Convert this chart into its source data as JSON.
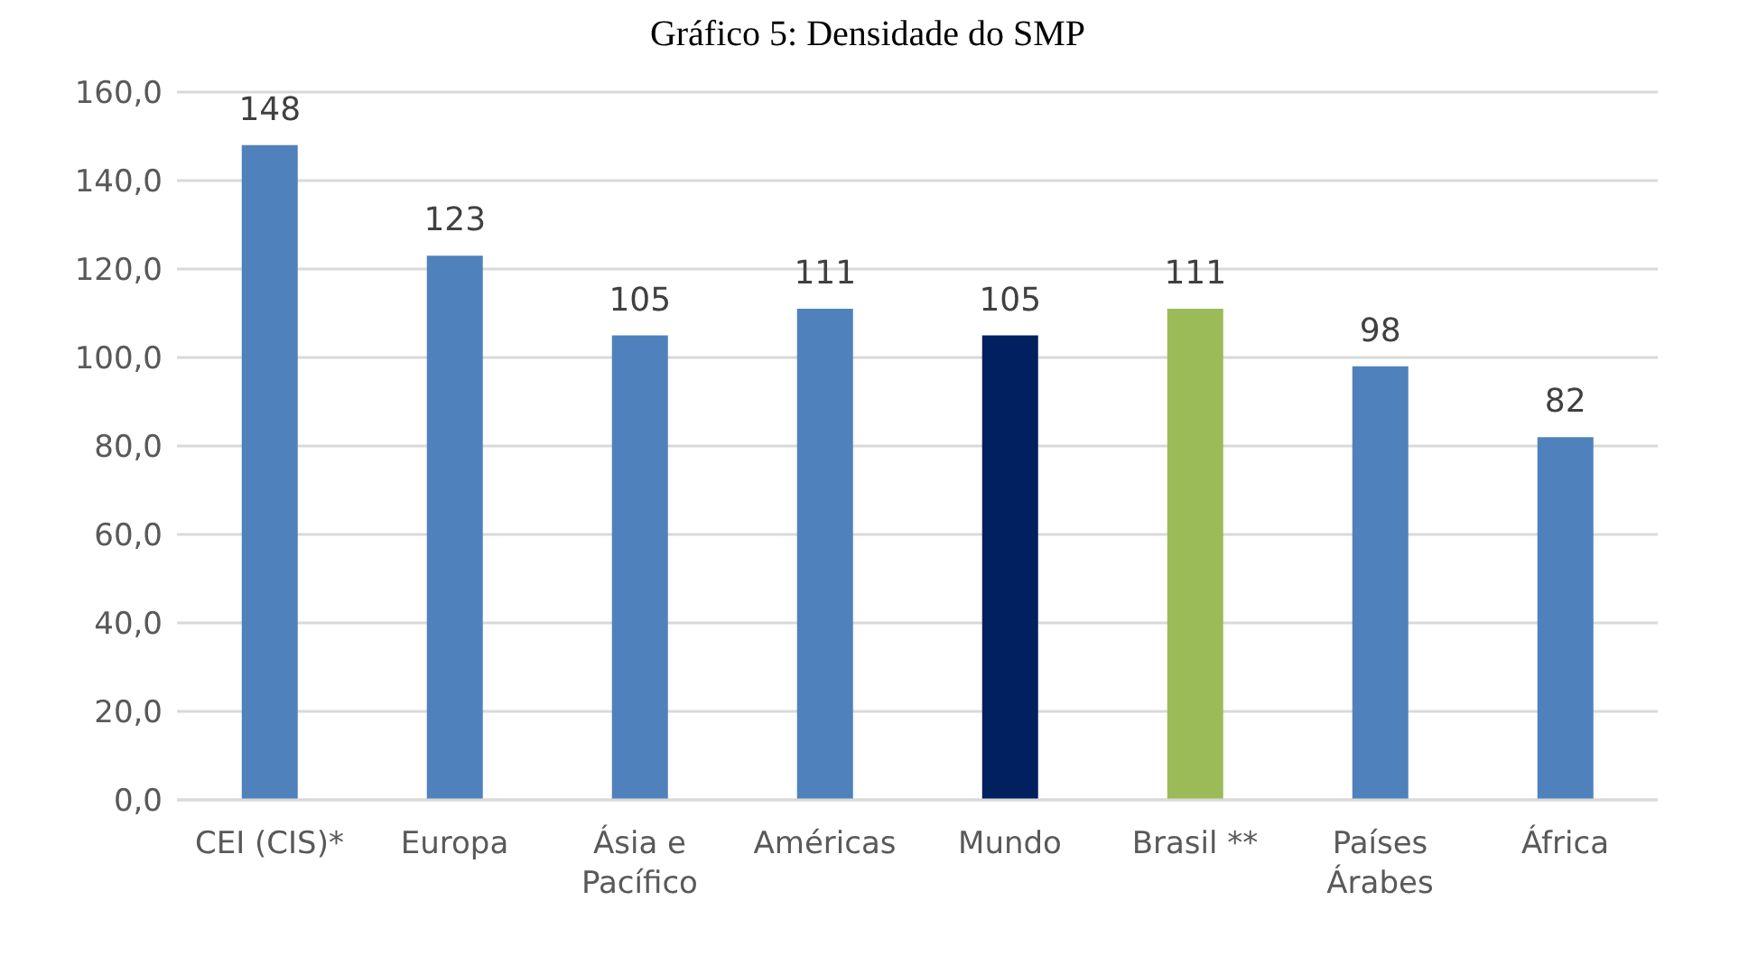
{
  "chart_data": {
    "type": "bar",
    "title": "Gráfico 5: Densidade do SMP",
    "categories": [
      "CEI (CIS)*",
      "Europa",
      "Ásia e Pacífico",
      "Américas",
      "Mundo",
      "Brasil **",
      "Países Árabes",
      "África"
    ],
    "values": [
      148,
      123,
      105,
      111,
      105,
      111,
      98,
      82
    ],
    "colors": [
      "#4f81bd",
      "#4f81bd",
      "#4f81bd",
      "#4f81bd",
      "#002060",
      "#9bbb59",
      "#4f81bd",
      "#4f81bd"
    ],
    "ylim": [
      0,
      160
    ],
    "yticks": [
      {
        "value": 0,
        "label": "0,0"
      },
      {
        "value": 20,
        "label": "20,0"
      },
      {
        "value": 40,
        "label": "40,0"
      },
      {
        "value": 60,
        "label": "60,0"
      },
      {
        "value": 80,
        "label": "80,0"
      },
      {
        "value": 100,
        "label": "100,0"
      },
      {
        "value": 120,
        "label": "120,0"
      },
      {
        "value": 140,
        "label": "140,0"
      },
      {
        "value": 160,
        "label": "160,0"
      }
    ],
    "grid": "y",
    "data_labels": true
  }
}
